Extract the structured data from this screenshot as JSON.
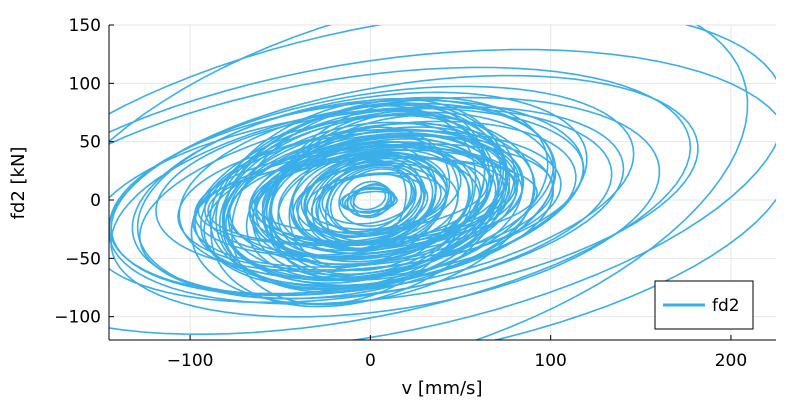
{
  "chart_data": {
    "type": "line",
    "title": "",
    "xlabel": "v [mm/s]",
    "ylabel": "fd2 [kN]",
    "xlim": [
      -145,
      225
    ],
    "ylim": [
      -120,
      150
    ],
    "xticks": [
      -100,
      0,
      100,
      200
    ],
    "xtick_labels": [
      "−100",
      "0",
      "100",
      "200"
    ],
    "yticks": [
      -100,
      -50,
      0,
      50,
      100,
      150
    ],
    "ytick_labels": [
      "−100",
      "−50",
      "0",
      "50",
      "100",
      "150"
    ],
    "grid": true,
    "legend": {
      "position": "bottom-right",
      "entries": [
        "fd2"
      ]
    },
    "series": [
      {
        "name": "fd2",
        "color": "#3aaee8",
        "description_values": "hysteresis loops of decaying/varying ellipses centred near origin",
        "loops": [
          {
            "vx": 215,
            "fy": 140,
            "tilt": 0.42,
            "count": 3,
            "jitter": 0.04
          },
          {
            "vx": 175,
            "fy": 95,
            "tilt": 0.4,
            "count": 2,
            "jitter": 0.05
          },
          {
            "vx": 130,
            "fy": 90,
            "tilt": 0.35,
            "count": 4,
            "jitter": 0.06
          },
          {
            "vx": 110,
            "fy": 75,
            "tilt": 0.3,
            "count": 8,
            "jitter": 0.08
          },
          {
            "vx": 90,
            "fy": 65,
            "tilt": 0.28,
            "count": 14,
            "jitter": 0.1
          },
          {
            "vx": 70,
            "fy": 55,
            "tilt": 0.25,
            "count": 18,
            "jitter": 0.12
          },
          {
            "vx": 50,
            "fy": 45,
            "tilt": 0.22,
            "count": 18,
            "jitter": 0.12
          },
          {
            "vx": 30,
            "fy": 30,
            "tilt": 0.2,
            "count": 14,
            "jitter": 0.12
          },
          {
            "vx": 12,
            "fy": 12,
            "tilt": 0.2,
            "count": 8,
            "jitter": 0.1
          }
        ]
      }
    ]
  }
}
